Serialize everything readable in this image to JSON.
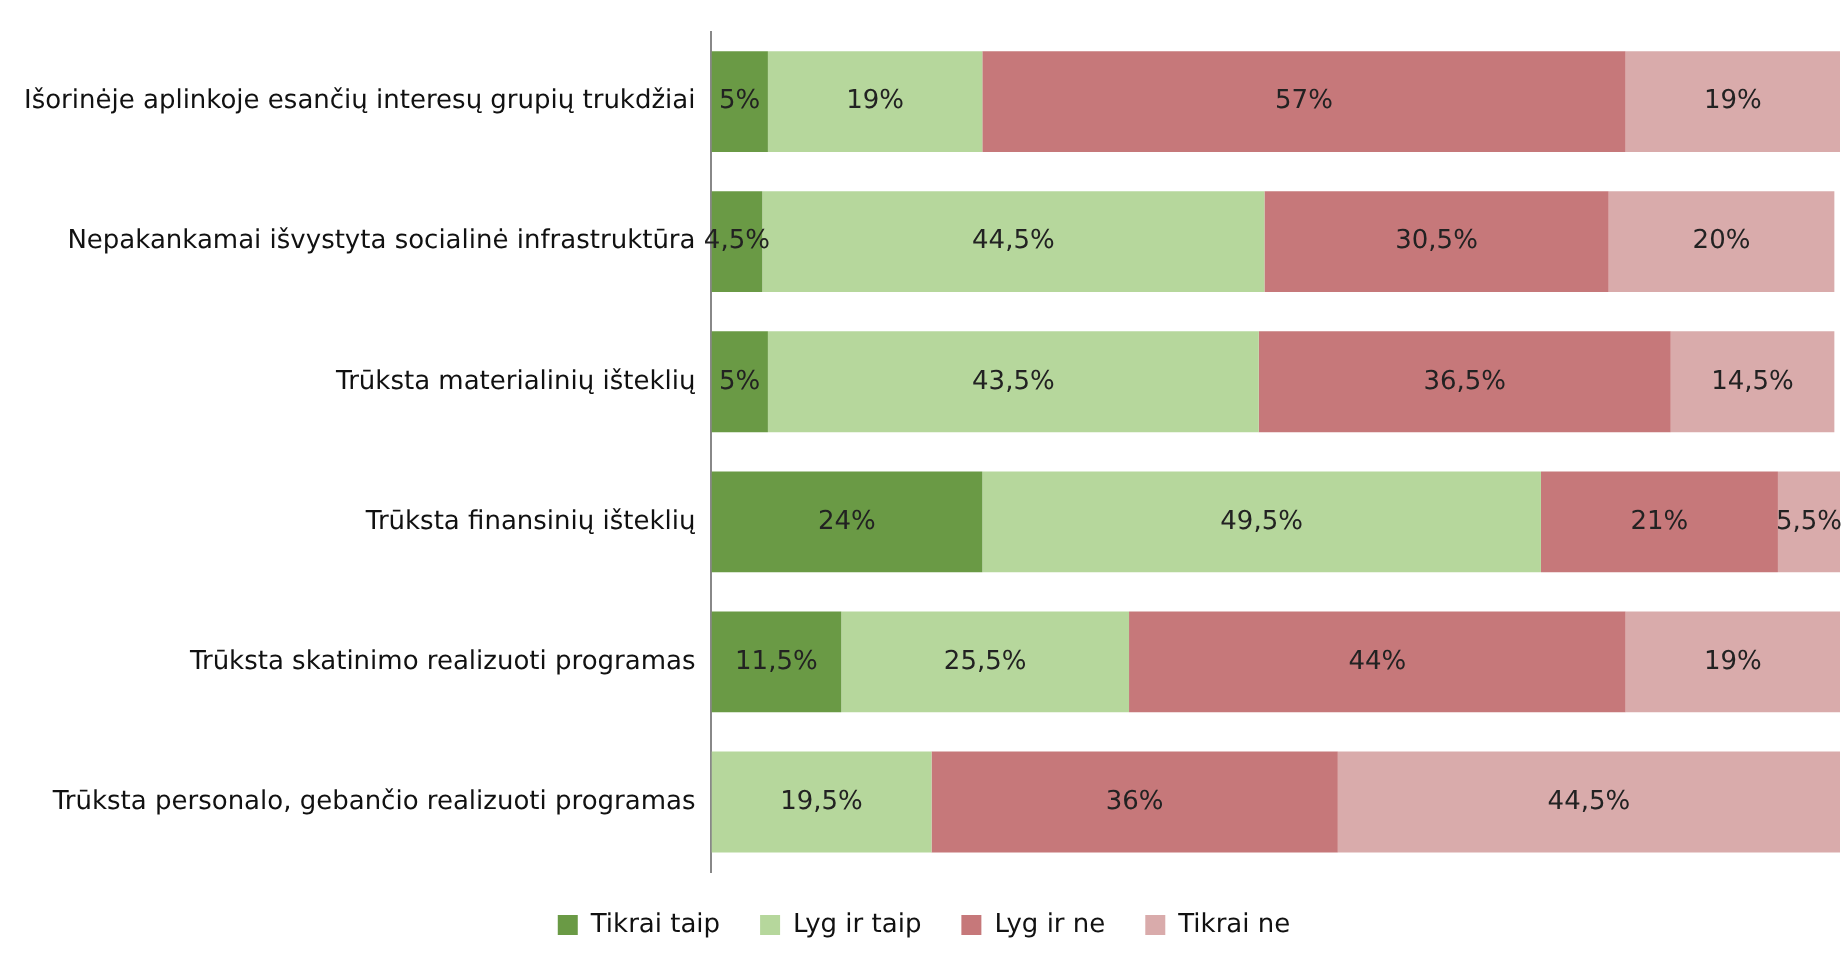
{
  "chart_data": {
    "type": "bar",
    "orientation": "horizontal",
    "stacked": true,
    "grid": false,
    "legend": "bottom",
    "tick_labels": "y",
    "categories": [
      "Išorinėje aplinkoje esančių interesų grupių trukdžiai",
      "Nepakankamai išvystyta socialinė infrastruktūra",
      "Trūksta materialinių išteklių",
      "Trūksta finansinių išteklių",
      "Trūksta skatinimo realizuoti programas",
      "Trūksta personalo, gebančio realizuoti programas"
    ],
    "series": [
      {
        "name": "Tikrai taip",
        "color": "#6a9a45",
        "values": [
          5,
          4.5,
          5,
          24,
          11.5,
          0
        ],
        "value_labels": [
          "5%",
          "4,5%",
          "5%",
          "24%",
          "11,5%",
          null
        ]
      },
      {
        "name": "Lyg ir taip",
        "color": "#b6d79c",
        "values": [
          19,
          44.5,
          43.5,
          49.5,
          25.5,
          19.5
        ],
        "value_labels": [
          "19%",
          "44,5%",
          "43,5%",
          "49,5%",
          "25,5%",
          "19,5%"
        ]
      },
      {
        "name": "Lyg ir ne",
        "color": "#c6787a",
        "values": [
          57,
          30.5,
          36.5,
          21,
          44,
          36
        ],
        "value_labels": [
          "57%",
          "30,5%",
          "36,5%",
          "21%",
          "44%",
          "36%"
        ]
      },
      {
        "name": "Tikrai ne",
        "color": "#d9abab",
        "values": [
          19,
          20,
          14.5,
          5.5,
          19,
          44.5
        ],
        "value_labels": [
          "19%",
          "20%",
          "14,5%",
          "5,5%",
          "19%",
          "44,5%"
        ]
      }
    ]
  }
}
